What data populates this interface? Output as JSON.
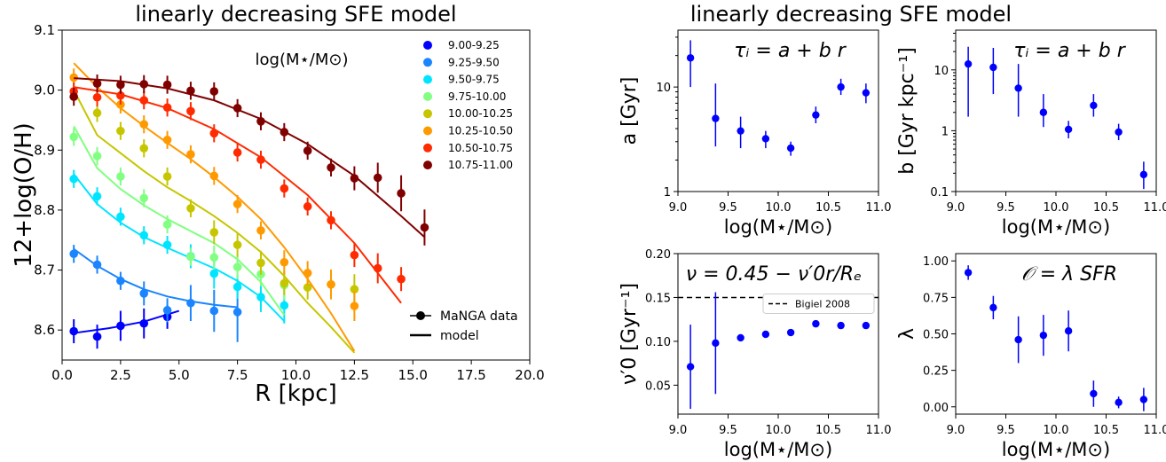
{
  "chart_data": [
    {
      "type": "line",
      "title": "linearly decreasing SFE model",
      "xlabel": "R [kpc]",
      "ylabel": "12+log(O/H)",
      "xlim": [
        0.0,
        20.0
      ],
      "ylim": [
        8.55,
        9.1
      ],
      "xticks": [
        "0.0",
        "2.5",
        "5.0",
        "7.5",
        "10.0",
        "12.5",
        "15.0",
        "17.5",
        "20.0"
      ],
      "yticks": [
        "8.6",
        "8.7",
        "8.8",
        "8.9",
        "9.0",
        "9.1"
      ],
      "legend_title": "log(M⋆/M⊙)",
      "legend_position": "top-right",
      "style_legend": [
        "MaNGA data",
        "model"
      ],
      "series": [
        {
          "name": "9.00-9.25",
          "color": "#0000ff",
          "x": [
            0.5,
            1.5,
            2.5,
            3.5,
            4.5
          ],
          "y": [
            8.598,
            8.589,
            8.607,
            8.611,
            8.622
          ],
          "err": [
            0.02,
            0.02,
            0.025,
            0.025,
            0.02
          ],
          "model_x": [
            0.5,
            2.0,
            3.5,
            5.0
          ],
          "model_y": [
            8.595,
            8.603,
            8.614,
            8.632
          ]
        },
        {
          "name": "9.25-9.50",
          "color": "#1a85ff",
          "x": [
            0.5,
            1.5,
            2.5,
            3.5,
            4.5,
            5.5,
            6.5,
            7.5
          ],
          "y": [
            8.727,
            8.709,
            8.682,
            8.661,
            8.633,
            8.645,
            8.632,
            8.63
          ],
          "err": [
            0.015,
            0.015,
            0.015,
            0.02,
            0.02,
            0.03,
            0.035,
            0.05
          ],
          "model_x": [
            0.5,
            1.5,
            2.5,
            3.5,
            4.5,
            5.5,
            6.5,
            7.5
          ],
          "model_y": [
            8.735,
            8.707,
            8.685,
            8.668,
            8.656,
            8.648,
            8.642,
            8.638
          ]
        },
        {
          "name": "9.50-9.75",
          "color": "#00e5ff",
          "x": [
            0.5,
            1.5,
            2.5,
            3.5,
            4.5,
            5.5,
            6.5,
            7.5,
            8.5,
            9.5
          ],
          "y": [
            8.852,
            8.823,
            8.789,
            8.758,
            8.742,
            8.723,
            8.694,
            8.672,
            8.655,
            8.641
          ],
          "err": [
            0.015,
            0.015,
            0.015,
            0.015,
            0.015,
            0.02,
            0.025,
            0.02,
            0.025,
            0.03
          ],
          "model_x": [
            0.5,
            1.5,
            2.5,
            3.5,
            4.5,
            5.5,
            6.5,
            7.5,
            8.5,
            9.5
          ],
          "model_y": [
            8.86,
            8.81,
            8.779,
            8.755,
            8.737,
            8.72,
            8.703,
            8.682,
            8.655,
            8.615
          ]
        },
        {
          "name": "9.75-10.00",
          "color": "#80ff80",
          "x": [
            0.5,
            1.5,
            2.5,
            3.5,
            4.5,
            5.5,
            6.5,
            7.5,
            8.5,
            9.5
          ],
          "y": [
            8.922,
            8.89,
            8.856,
            8.82,
            8.776,
            8.722,
            8.721,
            8.705,
            8.693,
            8.675
          ],
          "err": [
            0.015,
            0.015,
            0.015,
            0.015,
            0.015,
            0.015,
            0.02,
            0.02,
            0.02,
            0.025
          ],
          "model_x": [
            0.5,
            1.5,
            2.5,
            3.5,
            4.5,
            5.5,
            6.5,
            7.5,
            8.5,
            9.5
          ],
          "model_y": [
            8.94,
            8.87,
            8.835,
            8.808,
            8.785,
            8.765,
            8.745,
            8.718,
            8.68,
            8.625
          ]
        },
        {
          "name": "10.00-10.25",
          "color": "#c6c600",
          "x": [
            1.5,
            2.5,
            3.5,
            4.5,
            5.5,
            6.5,
            7.5,
            8.5,
            9.5,
            10.5,
            11.5,
            12.5
          ],
          "y": [
            8.962,
            8.932,
            8.903,
            8.856,
            8.803,
            8.763,
            8.742,
            8.712,
            8.678,
            8.671,
            8.676,
            8.668
          ],
          "err": [
            0.015,
            0.015,
            0.015,
            0.015,
            0.015,
            0.02,
            0.02,
            0.02,
            0.02,
            0.02,
            0.02,
            0.025
          ],
          "model_x": [
            0.5,
            1.5,
            2.5,
            3.5,
            4.5,
            5.5,
            6.5,
            7.5,
            8.5,
            9.5,
            10.5,
            11.5,
            12.5
          ],
          "model_y": [
            9.0,
            8.925,
            8.895,
            8.865,
            8.838,
            8.815,
            8.79,
            8.762,
            8.73,
            8.69,
            8.645,
            8.605,
            8.562
          ]
        },
        {
          "name": "10.25-10.50",
          "color": "#ff9900",
          "x": [
            0.5,
            2.5,
            3.5,
            4.5,
            5.5,
            6.5,
            7.5,
            8.5,
            9.5,
            10.5,
            11.5,
            12.5
          ],
          "y": [
            9.021,
            8.976,
            8.943,
            8.917,
            8.893,
            8.857,
            8.81,
            8.766,
            8.713,
            8.695,
            8.676,
            8.64
          ],
          "err": [
            0.015,
            0.015,
            0.015,
            0.015,
            0.015,
            0.015,
            0.015,
            0.015,
            0.02,
            0.02,
            0.025,
            0.025
          ],
          "model_x": [
            0.5,
            1.5,
            2.5,
            3.5,
            4.5,
            5.5,
            6.5,
            7.5,
            8.5,
            9.5,
            10.5,
            11.5,
            12.5
          ],
          "model_y": [
            9.045,
            9.005,
            8.97,
            8.94,
            8.912,
            8.885,
            8.855,
            8.822,
            8.785,
            8.738,
            8.685,
            8.628,
            8.565
          ]
        },
        {
          "name": "10.50-10.75",
          "color": "#ff2a00",
          "x": [
            0.5,
            1.5,
            2.5,
            3.5,
            4.5,
            5.5,
            6.5,
            7.5,
            8.5,
            9.5,
            10.5,
            11.5,
            12.5,
            13.5,
            14.5
          ],
          "y": [
            8.998,
            8.988,
            8.991,
            8.983,
            8.971,
            8.965,
            8.928,
            8.896,
            8.884,
            8.836,
            8.806,
            8.783,
            8.725,
            8.703,
            8.685
          ],
          "err": [
            0.015,
            0.015,
            0.015,
            0.015,
            0.015,
            0.015,
            0.015,
            0.015,
            0.015,
            0.015,
            0.015,
            0.015,
            0.02,
            0.025,
            0.02
          ],
          "model_x": [
            0.5,
            2.5,
            4.5,
            6.5,
            8.5,
            10.5,
            12.5,
            14.5
          ],
          "model_y": [
            9.005,
            8.993,
            8.97,
            8.935,
            8.888,
            8.825,
            8.745,
            8.645
          ]
        },
        {
          "name": "10.75-11.00",
          "color": "#800000",
          "x": [
            0.5,
            1.5,
            2.5,
            3.5,
            4.5,
            5.5,
            6.5,
            7.5,
            8.5,
            9.5,
            10.5,
            11.5,
            12.5,
            13.5,
            14.5,
            15.5
          ],
          "y": [
            8.989,
            9.011,
            9.009,
            9.01,
            9.009,
            8.999,
            8.998,
            8.97,
            8.948,
            8.93,
            8.899,
            8.871,
            8.853,
            8.854,
            8.828,
            8.771
          ],
          "err": [
            0.015,
            0.015,
            0.015,
            0.015,
            0.015,
            0.015,
            0.015,
            0.015,
            0.015,
            0.015,
            0.015,
            0.015,
            0.02,
            0.025,
            0.03,
            0.03
          ],
          "model_x": [
            0.5,
            2.5,
            4.5,
            6.5,
            8.5,
            10.5,
            12.5,
            14.5,
            15.5
          ],
          "model_y": [
            9.02,
            9.015,
            9.003,
            8.983,
            8.952,
            8.91,
            8.857,
            8.79,
            8.755
          ]
        }
      ]
    },
    {
      "type": "scatter",
      "title": "linearly decreasing SFE model",
      "annotation": "τᵢ = a + b r",
      "xlabel": "log(M⋆/M⊙)",
      "ylabel": "a [Gyr]",
      "yscale": "log",
      "xlim": [
        9.0,
        11.0
      ],
      "ylim": [
        1,
        35
      ],
      "xticks": [
        "9.0",
        "9.5",
        "10.0",
        "10.5",
        "11.0"
      ],
      "yticks": [
        "1",
        "10"
      ],
      "color": "#0000ff",
      "x": [
        9.125,
        9.375,
        9.625,
        9.875,
        10.125,
        10.375,
        10.625,
        10.875
      ],
      "y": [
        19.0,
        5.0,
        3.8,
        3.2,
        2.6,
        5.4,
        10.0,
        8.8
      ],
      "y_low": [
        10.0,
        2.7,
        2.6,
        2.6,
        2.2,
        4.5,
        8.4,
        7.0
      ],
      "y_high": [
        28.0,
        10.8,
        5.2,
        3.8,
        3.0,
        6.5,
        12.0,
        10.8
      ]
    },
    {
      "type": "scatter",
      "annotation": "τᵢ = a + b r",
      "xlabel": "log(M⋆/M⊙)",
      "ylabel": "b [Gyr kpc⁻¹]",
      "yscale": "log",
      "xlim": [
        9.0,
        11.0
      ],
      "ylim": [
        0.1,
        45
      ],
      "xticks": [
        "9.0",
        "9.5",
        "10.0",
        "10.5",
        "11.0"
      ],
      "yticks": [
        "0.1",
        "1",
        "10"
      ],
      "color": "#0000ff",
      "x": [
        9.125,
        9.375,
        9.625,
        9.875,
        10.125,
        10.375,
        10.625,
        10.875
      ],
      "y": [
        12.5,
        11.0,
        5.0,
        2.0,
        1.05,
        2.6,
        0.95,
        0.19
      ],
      "y_low": [
        1.7,
        4.0,
        1.7,
        1.15,
        0.75,
        1.7,
        0.7,
        0.11
      ],
      "y_high": [
        24.0,
        23.0,
        12.5,
        4.0,
        1.45,
        4.0,
        1.3,
        0.31
      ]
    },
    {
      "type": "scatter",
      "annotation": "ν = 0.45 − ν′0r/Rₑ",
      "xlabel": "log(M⋆/M⊙)",
      "ylabel": "ν′0 [Gyr⁻¹]",
      "xlim": [
        9.0,
        11.0
      ],
      "ylim": [
        0.017,
        0.2
      ],
      "xticks": [
        "9.0",
        "9.5",
        "10.0",
        "10.5",
        "11.0"
      ],
      "yticks": [
        "0.05",
        "0.10",
        "0.15",
        "0.20"
      ],
      "reference_line": {
        "y": 0.15,
        "label": "Bigiel 2008",
        "legend_position": "upper-right"
      },
      "color": "#0000ff",
      "x": [
        9.125,
        9.375,
        9.625,
        9.875,
        10.125,
        10.375,
        10.625,
        10.875
      ],
      "y": [
        0.071,
        0.098,
        0.104,
        0.108,
        0.11,
        0.12,
        0.118,
        0.118
      ],
      "err": [
        0.048,
        0.058,
        0.003,
        0.003,
        0.003,
        0.003,
        0.003,
        0.003
      ]
    },
    {
      "type": "scatter",
      "annotation": "𝒪 = λ SFR",
      "xlabel": "log(M⋆/M⊙)",
      "ylabel": "λ",
      "xlim": [
        9.0,
        11.0
      ],
      "ylim": [
        -0.05,
        1.05
      ],
      "xticks": [
        "9.0",
        "9.5",
        "10.0",
        "10.5",
        "11.0"
      ],
      "yticks": [
        "0.00",
        "0.25",
        "0.50",
        "0.75",
        "1.00"
      ],
      "color": "#0000ff",
      "x": [
        9.125,
        9.375,
        9.625,
        9.875,
        10.125,
        10.375,
        10.625,
        10.875
      ],
      "y": [
        0.92,
        0.68,
        0.46,
        0.49,
        0.52,
        0.09,
        0.03,
        0.05
      ],
      "err": [
        0.05,
        0.08,
        0.16,
        0.14,
        0.14,
        0.09,
        0.04,
        0.08
      ]
    }
  ]
}
